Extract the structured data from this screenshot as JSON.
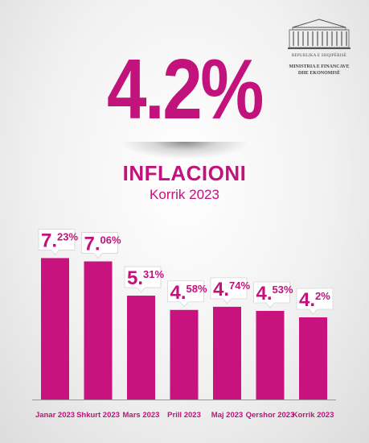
{
  "logo": {
    "line1": "REPUBLIKA E SHQIPËRISË",
    "line2": "MINISTRIA E FINANCAVE",
    "line3": "DHE EKONOMISË"
  },
  "headline": "4.2%",
  "title": "INFLACIONI",
  "subtitle": "Korrik 2023",
  "colors": {
    "accent": "#c2127c",
    "bar": "#c8127e"
  },
  "chart_data": {
    "type": "bar",
    "categories": [
      "Janar 2023",
      "Shkurt 2023",
      "Mars 2023",
      "Prill 2023",
      "Maj 2023",
      "Qershor 2023",
      "Korrik 2023"
    ],
    "values": [
      7.23,
      7.06,
      5.31,
      4.58,
      4.74,
      4.53,
      4.2
    ],
    "labels": [
      {
        "big": "7.",
        "small": "23%"
      },
      {
        "big": "7.",
        "small": "06%"
      },
      {
        "big": "5.",
        "small": "31%"
      },
      {
        "big": "4.",
        "small": "58%"
      },
      {
        "big": "4.",
        "small": "74%"
      },
      {
        "big": "4.",
        "small": "53%"
      },
      {
        "big": "4.",
        "small": "2%"
      }
    ],
    "ylim": [
      0,
      8.4
    ],
    "grid": false,
    "legend": "none"
  }
}
